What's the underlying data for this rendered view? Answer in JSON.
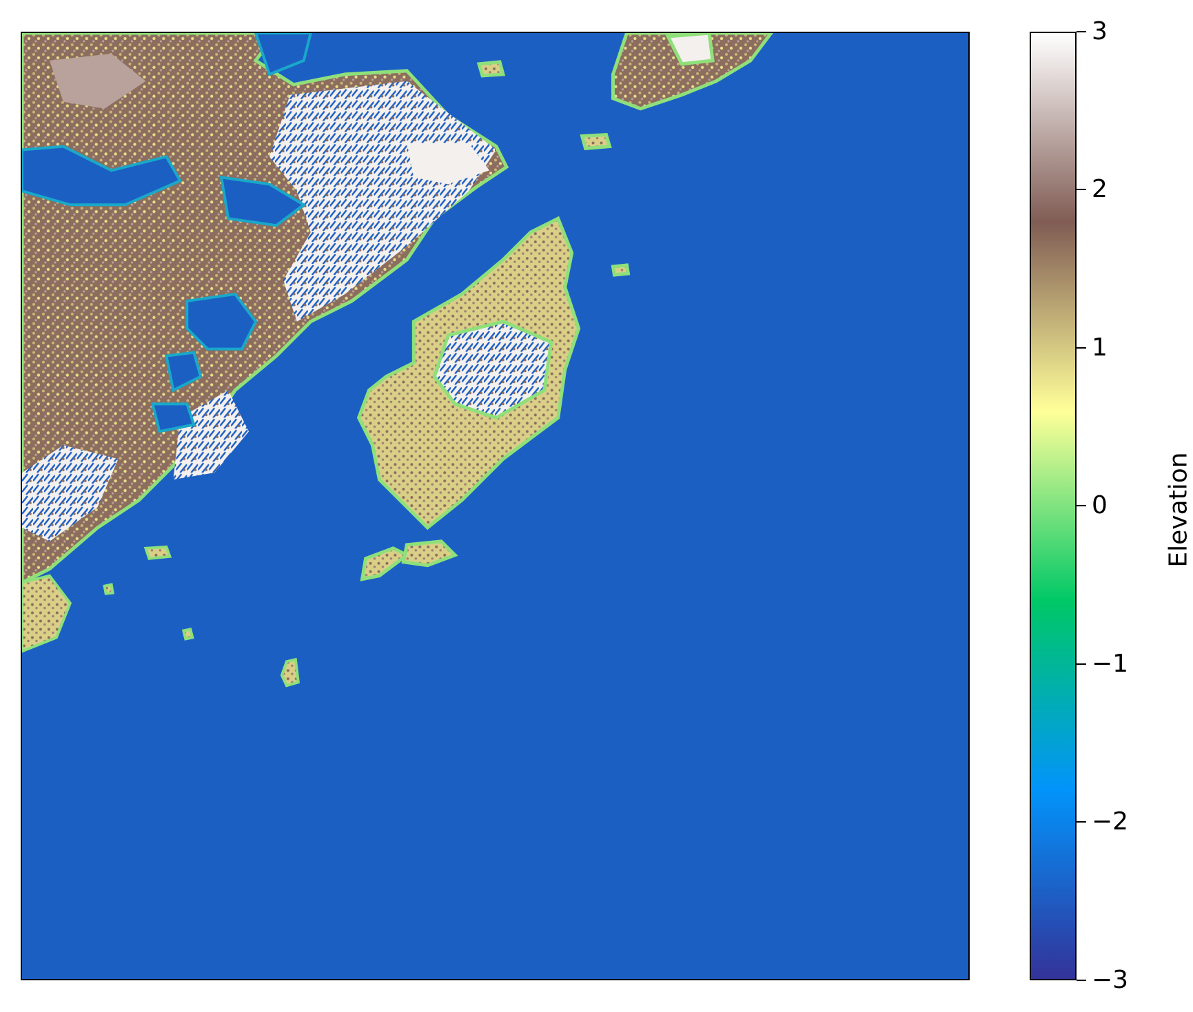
{
  "colorbar": {
    "label": "Elevation",
    "min": -3,
    "max": 3,
    "ticks": [
      "3",
      "2",
      "1",
      "0",
      "−1",
      "−2",
      "−3"
    ],
    "tick_values": [
      3,
      2,
      1,
      0,
      -1,
      -2,
      -3
    ],
    "colormap": "terrain",
    "colors": [
      "#333399",
      "#0294fa",
      "#00c866",
      "#ffff99",
      "#805c54",
      "#ffffff"
    ]
  },
  "map": {
    "water_color": "#1c5fc3",
    "land_colors": {
      "lowland": "#c9c27a",
      "yellow": "#e6df8a",
      "brown": "#8c6d5e",
      "light": "#b8a29b",
      "snow": "#f4f0ee",
      "coast_green": "#8fe07a",
      "coast_cyan": "#19a8c9"
    },
    "axes_ticks_visible": false
  }
}
